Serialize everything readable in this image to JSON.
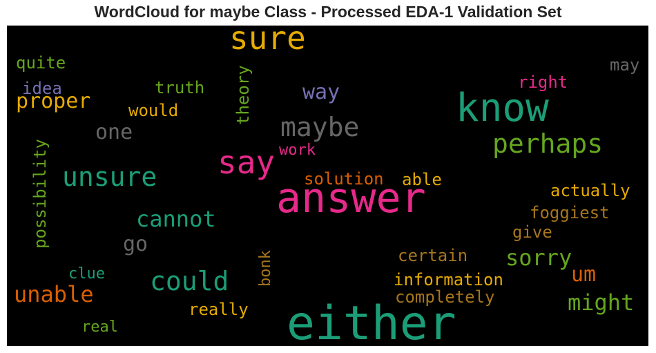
{
  "title": "WordCloud for maybe Class - Processed EDA-1 Validation Set",
  "words": {
    "answer": {
      "text": "answer",
      "color": "#e7298a"
    },
    "either": {
      "text": "either",
      "color": "#1b9e77"
    },
    "know": {
      "text": "know",
      "color": "#1b9e77"
    },
    "sure": {
      "text": "sure",
      "color": "#e6ab02"
    },
    "say": {
      "text": "say",
      "color": "#e7298a"
    },
    "maybe": {
      "text": "maybe",
      "color": "#666666"
    },
    "perhaps": {
      "text": "perhaps",
      "color": "#66a61e"
    },
    "unsure": {
      "text": "unsure",
      "color": "#1b9e77"
    },
    "could": {
      "text": "could",
      "color": "#1b9e77"
    },
    "cannot": {
      "text": "cannot",
      "color": "#1b9e77"
    },
    "unable": {
      "text": "unable",
      "color": "#d95f02"
    },
    "might": {
      "text": "might",
      "color": "#66a61e"
    },
    "sorry": {
      "text": "sorry",
      "color": "#66a61e"
    },
    "proper": {
      "text": "proper",
      "color": "#e6ab02"
    },
    "way": {
      "text": "way",
      "color": "#7570b3"
    },
    "um": {
      "text": "um",
      "color": "#d95f02"
    },
    "go": {
      "text": "go",
      "color": "#666666"
    },
    "one": {
      "text": "one",
      "color": "#666666"
    },
    "actually": {
      "text": "actually",
      "color": "#e6ab02"
    },
    "foggiest": {
      "text": "foggiest",
      "color": "#a6761d"
    },
    "solution": {
      "text": "solution",
      "color": "#d95f02"
    },
    "information": {
      "text": "information",
      "color": "#e6ab02"
    },
    "completely": {
      "text": "completely",
      "color": "#a6761d"
    },
    "certain": {
      "text": "certain",
      "color": "#a6761d"
    },
    "really": {
      "text": "really",
      "color": "#e6ab02"
    },
    "able": {
      "text": "able",
      "color": "#e6ab02"
    },
    "give": {
      "text": "give",
      "color": "#a6761d"
    },
    "truth": {
      "text": "truth",
      "color": "#66a61e"
    },
    "would": {
      "text": "would",
      "color": "#e6ab02"
    },
    "quite": {
      "text": "quite",
      "color": "#66a61e"
    },
    "idea": {
      "text": "idea",
      "color": "#7570b3"
    },
    "right": {
      "text": "right",
      "color": "#e7298a"
    },
    "may": {
      "text": "may",
      "color": "#666666"
    },
    "work": {
      "text": "work",
      "color": "#e7298a"
    },
    "clue": {
      "text": "clue",
      "color": "#1b9e77"
    },
    "real": {
      "text": "real",
      "color": "#66a61e"
    },
    "theory": {
      "text": "theory",
      "color": "#66a61e"
    },
    "possibility": {
      "text": "possibility",
      "color": "#66a61e"
    },
    "bonk": {
      "text": "bonk",
      "color": "#a6761d"
    }
  }
}
